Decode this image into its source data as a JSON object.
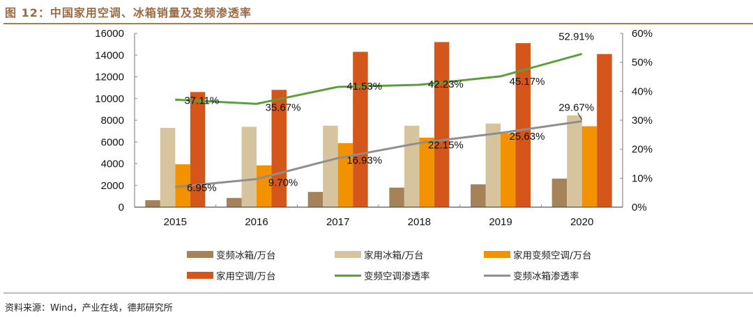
{
  "title": "图 12：中国家用空调、冰箱销量及变频渗透率",
  "source": "资料来源：Wind，产业在线，德邦研究所",
  "chart_data": {
    "type": "bar",
    "title": "图 12：中国家用空调、冰箱销量及变频渗透率",
    "categories": [
      "2015",
      "2016",
      "2017",
      "2018",
      "2019",
      "2020"
    ],
    "y_left": {
      "ylim": [
        0,
        16000
      ],
      "ticks": [
        0,
        2000,
        4000,
        6000,
        8000,
        10000,
        12000,
        14000,
        16000
      ],
      "tick_labels": [
        "0",
        "2000",
        "4000",
        "6000",
        "8000",
        "10000",
        "12000",
        "14000",
        "16000"
      ]
    },
    "y_right": {
      "ylim": [
        0,
        60
      ],
      "ticks": [
        0,
        10,
        20,
        30,
        40,
        50,
        60
      ],
      "tick_labels": [
        "0%",
        "10%",
        "20%",
        "30%",
        "40%",
        "50%",
        "60%"
      ]
    },
    "grid": false,
    "legend_position": "bottom",
    "series": [
      {
        "name": "变频冰箱/万台",
        "type": "bar",
        "axis": "left",
        "color": "#A6825A",
        "values": [
          640,
          850,
          1400,
          1800,
          2100,
          2630
        ]
      },
      {
        "name": "家用冰箱/万台",
        "type": "bar",
        "axis": "left",
        "color": "#D5C49D",
        "values": [
          7300,
          7400,
          7500,
          7500,
          7700,
          8450
        ]
      },
      {
        "name": "家用变频空调/万台",
        "type": "bar",
        "axis": "left",
        "color": "#F39200",
        "values": [
          3950,
          3850,
          5900,
          6400,
          6800,
          7450
        ]
      },
      {
        "name": "家用空调/万台",
        "type": "bar",
        "axis": "left",
        "color": "#D4561A",
        "values": [
          10600,
          10800,
          14300,
          15200,
          15100,
          14100
        ]
      },
      {
        "name": "变频空调渗透率",
        "type": "line",
        "axis": "right",
        "color": "#5B9E3A",
        "values": [
          37.11,
          35.67,
          41.53,
          42.23,
          45.17,
          52.91
        ],
        "labels": [
          "37.11%",
          "35.67%",
          "41.53%",
          "42.23%",
          "45.17%",
          "52.91%"
        ]
      },
      {
        "name": "变频冰箱渗透率",
        "type": "line",
        "axis": "right",
        "color": "#8E8E8E",
        "values": [
          6.95,
          9.7,
          16.93,
          22.15,
          25.63,
          29.67
        ],
        "labels": [
          "6.95%",
          "9.70%",
          "16.93%",
          "22.15%",
          "25.63%",
          "29.67%"
        ]
      }
    ]
  }
}
